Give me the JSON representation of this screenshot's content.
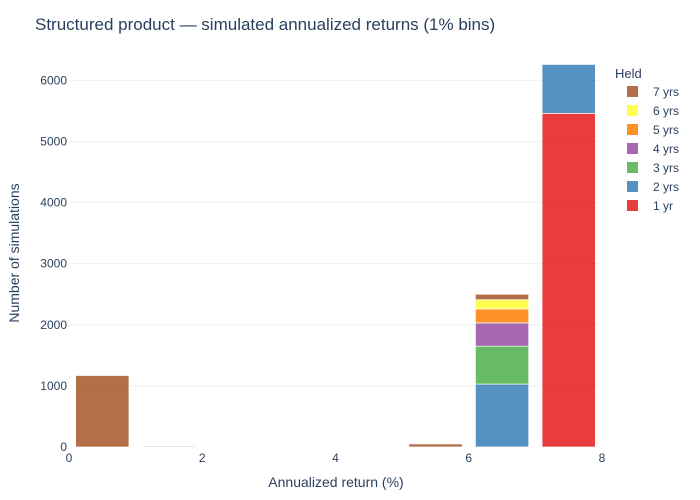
{
  "chart_data": {
    "type": "bar",
    "title": "Structured product — simulated annualized returns (1% bins)",
    "xlabel": "Annualized return (%)",
    "ylabel": "Number of simulations",
    "xlim": [
      0,
      8
    ],
    "ylim": [
      0,
      6300
    ],
    "xticks": [
      0,
      2,
      4,
      6,
      8
    ],
    "yticks": [
      0,
      1000,
      2000,
      3000,
      4000,
      5000,
      6000
    ],
    "grid": true,
    "barmode": "stack",
    "legend": {
      "title": "Held",
      "position": "top-right"
    },
    "bins": [
      [
        0,
        1
      ],
      [
        1,
        2
      ],
      [
        5,
        6
      ],
      [
        6,
        7
      ],
      [
        7,
        8
      ]
    ],
    "series": [
      {
        "name": "1 yr",
        "color": "#e41a1c",
        "values": [
          0,
          0,
          0,
          0,
          5460
        ]
      },
      {
        "name": "2 yrs",
        "color": "#377eb8",
        "values": [
          0,
          0,
          0,
          1030,
          800
        ]
      },
      {
        "name": "3 yrs",
        "color": "#4daf4a",
        "values": [
          0,
          0,
          0,
          620,
          0
        ]
      },
      {
        "name": "4 yrs",
        "color": "#984ea3",
        "values": [
          0,
          0,
          0,
          380,
          0
        ]
      },
      {
        "name": "5 yrs",
        "color": "#ff7f00",
        "values": [
          0,
          0,
          0,
          230,
          0
        ]
      },
      {
        "name": "6 yrs",
        "color": "#ffff33",
        "values": [
          0,
          0,
          0,
          150,
          0
        ]
      },
      {
        "name": "7 yrs",
        "color": "#a65628",
        "values": [
          1170,
          15,
          50,
          90,
          0
        ]
      }
    ]
  }
}
